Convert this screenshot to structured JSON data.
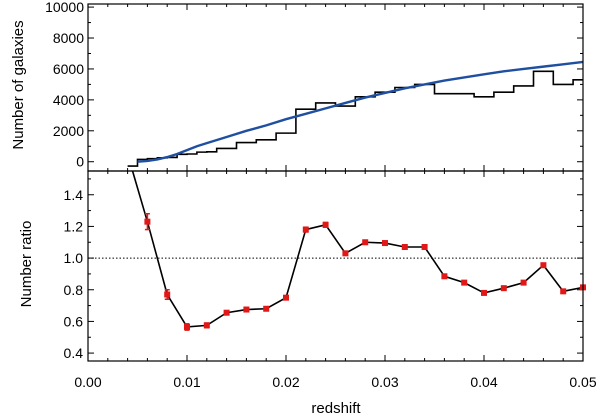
{
  "chart_data": [
    {
      "type": "line",
      "panel": "top",
      "ylabel": "Number of galaxies",
      "xlim": [
        0.0,
        0.05
      ],
      "ylim": [
        -600,
        10200
      ],
      "yticks": [
        0,
        2000,
        4000,
        6000,
        8000,
        10000
      ],
      "series": [
        {
          "style": "histogram-step",
          "color": "#000000",
          "bin_edges": [
            0.004,
            0.005,
            0.006,
            0.007,
            0.008,
            0.009,
            0.01,
            0.011,
            0.012,
            0.013,
            0.014,
            0.015,
            0.016,
            0.017,
            0.018,
            0.019,
            0.02,
            0.021,
            0.022,
            0.023,
            0.024,
            0.025,
            0.026,
            0.027,
            0.028,
            0.029,
            0.03,
            0.031,
            0.032,
            0.033,
            0.034,
            0.035,
            0.036,
            0.037,
            0.038,
            0.039,
            0.04,
            0.041,
            0.042,
            0.043,
            0.044,
            0.045,
            0.046,
            0.047,
            0.048,
            0.049,
            0.05
          ],
          "values": [
            -280,
            150,
            200,
            250,
            280,
            480,
            500,
            620,
            640,
            860,
            860,
            1240,
            1240,
            1420,
            1420,
            1850,
            1850,
            3400,
            3400,
            3800,
            3800,
            3600,
            3600,
            4200,
            4200,
            4500,
            4500,
            4800,
            4800,
            5000,
            5000,
            4400,
            4400,
            4400,
            4400,
            4200,
            4200,
            4500,
            4500,
            4900,
            4900,
            5850,
            5850,
            5000,
            5000,
            5300
          ]
        },
        {
          "style": "smooth-curve",
          "color": "#1f4fa0",
          "x": [
            0.005,
            0.006,
            0.007,
            0.008,
            0.009,
            0.01,
            0.011,
            0.012,
            0.014,
            0.016,
            0.018,
            0.02,
            0.022,
            0.024,
            0.026,
            0.028,
            0.03,
            0.032,
            0.034,
            0.036,
            0.038,
            0.04,
            0.042,
            0.044,
            0.046,
            0.048,
            0.05
          ],
          "y": [
            0,
            50,
            150,
            300,
            500,
            750,
            1000,
            1200,
            1600,
            2000,
            2350,
            2750,
            3100,
            3450,
            3800,
            4150,
            4450,
            4750,
            5000,
            5250,
            5450,
            5650,
            5850,
            6000,
            6150,
            6300,
            6450
          ]
        }
      ]
    },
    {
      "type": "line",
      "panel": "bottom",
      "xlabel": "redshift",
      "ylabel": "Number ratio",
      "xlim": [
        0.0,
        0.05
      ],
      "ylim": [
        0.35,
        1.55
      ],
      "xticks": [
        0.0,
        0.01,
        0.02,
        0.03,
        0.04,
        0.05
      ],
      "xtick_labels": [
        "0.00",
        "0.01",
        "0.02",
        "0.03",
        "0.04",
        "0.05"
      ],
      "yticks": [
        0.4,
        0.6,
        0.8,
        1.0,
        1.2,
        1.4
      ],
      "yticklabels": [
        "0.4",
        "0.6",
        "0.8",
        "1.0",
        "1.2",
        "1.4"
      ],
      "reference_line": {
        "y": 1.0,
        "style": "dotted"
      },
      "line_start": [
        0.0045,
        1.55
      ],
      "series": [
        {
          "style": "line-with-error-markers",
          "line_color": "#000000",
          "marker_color": "#e01818",
          "x": [
            0.006,
            0.008,
            0.01,
            0.012,
            0.014,
            0.016,
            0.018,
            0.02,
            0.022,
            0.024,
            0.026,
            0.028,
            0.03,
            0.032,
            0.034,
            0.036,
            0.038,
            0.04,
            0.042,
            0.044,
            0.046,
            0.048,
            0.05
          ],
          "y": [
            1.23,
            0.77,
            0.565,
            0.575,
            0.655,
            0.675,
            0.68,
            0.75,
            1.18,
            1.21,
            1.03,
            1.1,
            1.095,
            1.07,
            1.07,
            0.885,
            0.845,
            0.78,
            0.81,
            0.845,
            0.955,
            0.79,
            0.815
          ],
          "yerr": [
            0.05,
            0.03,
            0.02,
            0.015,
            0.012,
            0.012,
            0.012,
            0.012,
            0.015,
            0.015,
            0.012,
            0.01,
            0.01,
            0.01,
            0.01,
            0.01,
            0.01,
            0.008,
            0.008,
            0.008,
            0.008,
            0.008,
            0.008
          ]
        }
      ]
    }
  ]
}
